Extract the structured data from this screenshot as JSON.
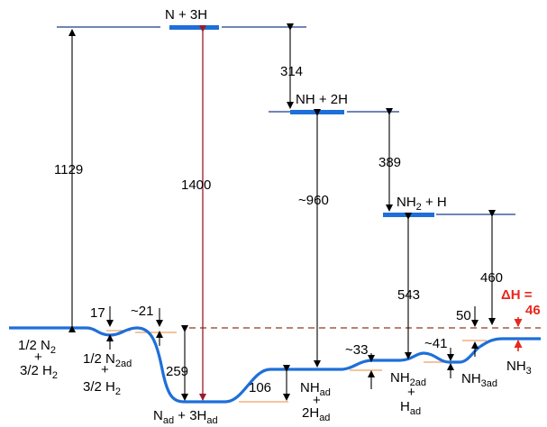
{
  "states": {
    "n_3h": "N + 3H",
    "nh_2h": "NH + 2H",
    "nh2_h": {
      "main": "NH",
      "sub": "2",
      "tail": " + H"
    },
    "n2_h2": {
      "l1a": "1/2 N",
      "l1s": "2",
      "plus": "+",
      "l2a": "3/2 H",
      "l2s": "2"
    },
    "n2ad_h2": {
      "l1a": "1/2 N",
      "l1s": "2ad",
      "plus": "+",
      "l2a": "3/2 H",
      "l2s": "2"
    },
    "nad_3had": {
      "a": "N",
      "as": "ad",
      "b": " + 3H",
      "bs": "ad"
    },
    "nhad_2had": {
      "a": "NH",
      "as": "ad",
      "plus": "+",
      "b": "2H",
      "bs": "ad"
    },
    "nh2ad_had": {
      "a": "NH",
      "as": "2ad",
      "plus": "+",
      "b": "H",
      "bs": "ad"
    },
    "nh3ad": {
      "a": "NH",
      "as": "3ad"
    },
    "nh3": {
      "a": "NH",
      "as": "3"
    }
  },
  "energies": {
    "e1129": "1129",
    "e1400": "1400",
    "e314": "314",
    "e960": "~960",
    "e389": "389",
    "e543": "543",
    "e460": "460",
    "e17": "17",
    "e21": "~21",
    "e259": "259",
    "e106": "106",
    "e33": "~33",
    "e41": "~41",
    "e50": "50"
  },
  "delta_h": {
    "label": "ΔH =",
    "value": "46"
  },
  "colors": {
    "profile": "#1e6fd9",
    "level_bar": "#1e6fd9",
    "line": "#1a3a8a",
    "orange": "#f0a060",
    "dashed": "#8a3a1a",
    "red_arrow": "#9a1a2a",
    "delta": "#e8281d"
  }
}
